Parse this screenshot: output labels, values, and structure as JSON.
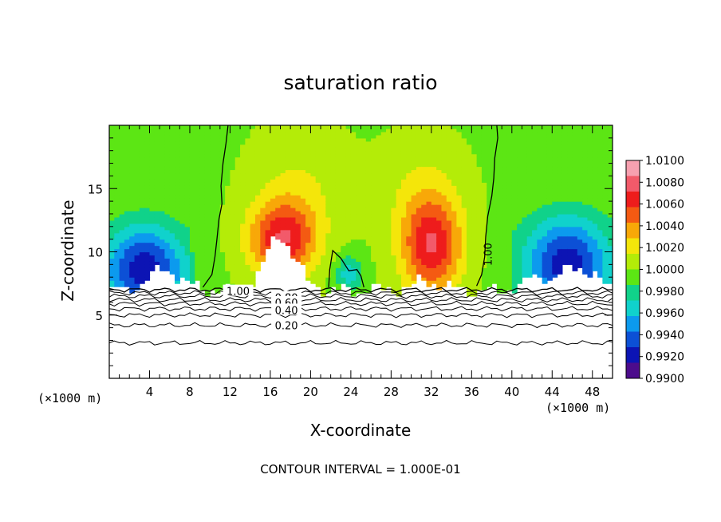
{
  "chart_data": {
    "type": "heatmap",
    "title": "saturation ratio",
    "xlabel": "X-coordinate",
    "ylabel": "Z-coordinate",
    "x_unit_left": "(×1000 m)",
    "x_unit_right": "(×1000 m)",
    "xlim": [
      0,
      50
    ],
    "ylim": [
      0,
      20
    ],
    "x_ticks": [
      "4",
      "8",
      "12",
      "16",
      "20",
      "24",
      "28",
      "32",
      "36",
      "40",
      "44",
      "48"
    ],
    "x_tick_values": [
      4,
      8,
      12,
      16,
      20,
      24,
      28,
      32,
      36,
      40,
      44,
      48
    ],
    "y_ticks": [
      "5",
      "10",
      "15"
    ],
    "y_tick_values": [
      5,
      10,
      15
    ],
    "footer": "CONTOUR INTERVAL = 1.000E-01",
    "colorbar": {
      "ticks": [
        "1.0100",
        "1.0080",
        "1.0060",
        "1.0040",
        "1.0020",
        "1.0000",
        "0.9980",
        "0.9960",
        "0.9940",
        "0.9920",
        "0.9900"
      ],
      "range": [
        0.99,
        1.01
      ],
      "colors": [
        "#f7a0b0",
        "#f25a6a",
        "#ee1c1c",
        "#f45a12",
        "#f8a808",
        "#f4e60a",
        "#b4ec08",
        "#5ce614",
        "#10d28a",
        "#10d2cc",
        "#0c9aee",
        "#0c50d6",
        "#0c14b4",
        "#4c0c8c"
      ]
    },
    "contour_labels": [
      "1.00",
      "0.80",
      "0.60",
      "0.40",
      "0.20",
      "1.00"
    ],
    "contour_levels": [
      0.2,
      0.4,
      0.6,
      0.8,
      1.0
    ]
  }
}
